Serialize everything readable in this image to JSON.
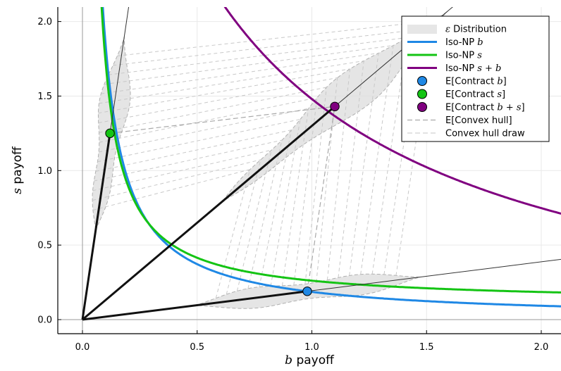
{
  "chart_data": {
    "type": "line",
    "xlabel": {
      "var": "b",
      "text": " payoff"
    },
    "ylabel": {
      "var": "s",
      "text": " payoff"
    },
    "xlim": [
      -0.1,
      2.07
    ],
    "ylim": [
      -0.1,
      2.1
    ],
    "xticks": [
      0.0,
      0.5,
      1.0,
      1.5,
      2.0
    ],
    "xtick_labels": [
      "0.0",
      "0.5",
      "1.0",
      "1.5",
      "2.0"
    ],
    "yticks": [
      0.0,
      0.5,
      1.0,
      1.5,
      2.0
    ],
    "ytick_labels": [
      "0.0",
      "0.5",
      "1.0",
      "1.5",
      "2.0"
    ],
    "grid": true,
    "legend_position": "top-right",
    "legend": [
      {
        "kind": "band",
        "prefix": "",
        "math": "ε",
        "suffix": " Distribution",
        "color": "#d8d8d8"
      },
      {
        "kind": "line",
        "prefix": "Iso-NP ",
        "math": "b",
        "suffix": "",
        "color": "#1f88e5"
      },
      {
        "kind": "line",
        "prefix": "Iso-NP ",
        "math": "s",
        "suffix": "",
        "color": "#14c414"
      },
      {
        "kind": "line",
        "prefix": "Iso-NP ",
        "math": "s + b",
        "suffix": "",
        "color": "#800080"
      },
      {
        "kind": "marker",
        "prefix": "E[Contract ",
        "math": "b",
        "suffix": "]",
        "color": "#1f88e5"
      },
      {
        "kind": "marker",
        "prefix": "E[Contract ",
        "math": "s",
        "suffix": "]",
        "color": "#14c414"
      },
      {
        "kind": "marker",
        "prefix": "E[Contract ",
        "math": "b + s",
        "suffix": "]",
        "color": "#800080"
      },
      {
        "kind": "dash",
        "prefix": "E[Convex hull]",
        "math": "",
        "suffix": "",
        "color": "#aaaaaa"
      },
      {
        "kind": "dash",
        "prefix": "Convex hull draw",
        "math": "",
        "suffix": "",
        "color": "#d0d0d0"
      }
    ],
    "contracts": [
      {
        "name": "E[Contract b]",
        "x": 0.98,
        "y": 0.19,
        "color": "#1f88e5"
      },
      {
        "name": "E[Contract s]",
        "x": 0.12,
        "y": 1.25,
        "color": "#14c414"
      },
      {
        "name": "E[Contract b + s]",
        "x": 1.1,
        "y": 1.43,
        "color": "#800080"
      }
    ],
    "iso_np": [
      {
        "name": "Iso-NP b",
        "formula": "x*y = 0.186",
        "k": 0.186,
        "kind": "product",
        "color": "#1f88e5"
      },
      {
        "name": "Iso-NP s",
        "formula": "x*y = 0.150, shifted",
        "k": 0.15,
        "kind": "shifted",
        "color": "#14c414"
      },
      {
        "name": "Iso-NP s + b",
        "formula": "(x+0.4)*(y+0.4) ≈ 2.745",
        "k": 2.745,
        "kind": "sum",
        "color": "#800080"
      }
    ],
    "distributions": [
      {
        "center": [
          0.98,
          0.19
        ],
        "angle_deg": 10.97,
        "length": 1.0,
        "width": 0.09
      },
      {
        "center": [
          0.12,
          1.25
        ],
        "angle_deg": 84.5,
        "length": 1.3,
        "width": 0.07
      },
      {
        "center": [
          1.1,
          1.43
        ],
        "angle_deg": 52.4,
        "length": 1.6,
        "width": 0.1
      }
    ]
  },
  "colors": {
    "axis": "#000000",
    "grid": "#e9e9e9",
    "ray": "#111111",
    "band_fill": "#dcdcdc",
    "band_edge": "#b0b0b0",
    "hull_dash": "#c8c8c8"
  }
}
